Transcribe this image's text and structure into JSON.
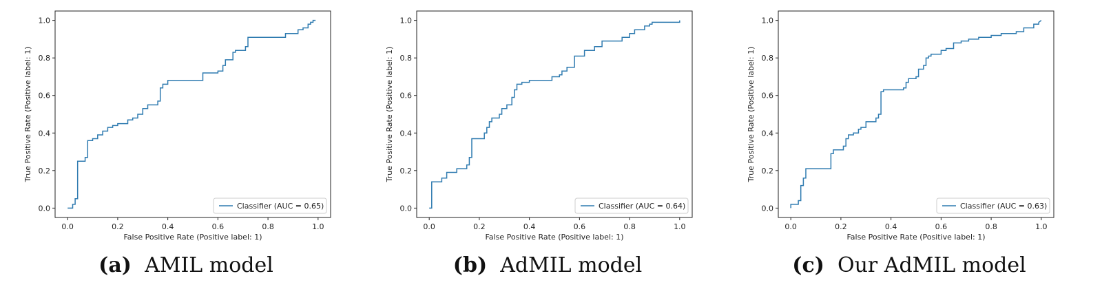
{
  "chart_data": [
    {
      "type": "line",
      "xlabel": "False Positive Rate (Positive label: 1)",
      "ylabel": "True Positive Rate (Positive label: 1)",
      "xlim": [
        0,
        1
      ],
      "ylim": [
        0,
        1
      ],
      "xticks": [
        "0.0",
        "0.2",
        "0.4",
        "0.6",
        "0.8",
        "1.0"
      ],
      "yticks": [
        "0.0",
        "0.2",
        "0.4",
        "0.6",
        "0.8",
        "1.0"
      ],
      "legend": "Classifier (AUC = 0.65)",
      "legend_position": "lower-right",
      "color": "#2f7bb0",
      "caption_tag": "(a)",
      "caption_text": "AMIL model",
      "x": [
        0.0,
        0.02,
        0.02,
        0.03,
        0.03,
        0.04,
        0.04,
        0.07,
        0.07,
        0.08,
        0.08,
        0.1,
        0.1,
        0.12,
        0.12,
        0.14,
        0.14,
        0.16,
        0.16,
        0.18,
        0.18,
        0.2,
        0.2,
        0.24,
        0.24,
        0.26,
        0.26,
        0.28,
        0.28,
        0.3,
        0.3,
        0.32,
        0.32,
        0.36,
        0.36,
        0.37,
        0.37,
        0.38,
        0.38,
        0.4,
        0.4,
        0.54,
        0.54,
        0.6,
        0.6,
        0.62,
        0.62,
        0.63,
        0.63,
        0.66,
        0.66,
        0.67,
        0.67,
        0.71,
        0.71,
        0.72,
        0.72,
        0.87,
        0.87,
        0.92,
        0.92,
        0.94,
        0.94,
        0.96,
        0.96,
        0.97,
        0.97,
        0.98,
        0.98,
        0.99
      ],
      "y": [
        0.0,
        0.0,
        0.02,
        0.02,
        0.05,
        0.05,
        0.25,
        0.25,
        0.27,
        0.27,
        0.36,
        0.36,
        0.37,
        0.37,
        0.39,
        0.39,
        0.41,
        0.41,
        0.43,
        0.43,
        0.44,
        0.44,
        0.45,
        0.45,
        0.47,
        0.47,
        0.48,
        0.48,
        0.5,
        0.5,
        0.53,
        0.53,
        0.55,
        0.55,
        0.57,
        0.57,
        0.64,
        0.64,
        0.66,
        0.66,
        0.68,
        0.68,
        0.72,
        0.72,
        0.73,
        0.73,
        0.76,
        0.76,
        0.79,
        0.79,
        0.83,
        0.83,
        0.84,
        0.84,
        0.86,
        0.86,
        0.91,
        0.91,
        0.93,
        0.93,
        0.95,
        0.95,
        0.96,
        0.96,
        0.98,
        0.98,
        0.99,
        0.99,
        1.0,
        1.0
      ]
    },
    {
      "type": "line",
      "xlabel": "False Positive Rate (Positive label: 1)",
      "ylabel": "True Positive Rate (Positive label: 1)",
      "xlim": [
        0,
        1
      ],
      "ylim": [
        0,
        1
      ],
      "xticks": [
        "0.0",
        "0.2",
        "0.4",
        "0.6",
        "0.8",
        "1.0"
      ],
      "yticks": [
        "0.0",
        "0.2",
        "0.4",
        "0.6",
        "0.8",
        "1.0"
      ],
      "legend": "Classifier (AUC = 0.64)",
      "legend_position": "lower-right",
      "color": "#2f7bb0",
      "caption_tag": "(b)",
      "caption_text": "AdMIL model",
      "x": [
        0.0,
        0.01,
        0.01,
        0.05,
        0.05,
        0.07,
        0.07,
        0.11,
        0.11,
        0.15,
        0.15,
        0.16,
        0.16,
        0.17,
        0.17,
        0.22,
        0.22,
        0.23,
        0.23,
        0.24,
        0.24,
        0.25,
        0.25,
        0.28,
        0.28,
        0.29,
        0.29,
        0.31,
        0.31,
        0.33,
        0.33,
        0.34,
        0.34,
        0.35,
        0.35,
        0.37,
        0.37,
        0.4,
        0.4,
        0.49,
        0.49,
        0.52,
        0.52,
        0.53,
        0.53,
        0.55,
        0.55,
        0.58,
        0.58,
        0.62,
        0.62,
        0.66,
        0.66,
        0.69,
        0.69,
        0.77,
        0.77,
        0.8,
        0.8,
        0.82,
        0.82,
        0.86,
        0.86,
        0.88,
        0.88,
        0.89,
        0.89,
        1.0,
        1.0
      ],
      "y": [
        0.0,
        0.0,
        0.14,
        0.14,
        0.16,
        0.16,
        0.19,
        0.19,
        0.21,
        0.21,
        0.23,
        0.23,
        0.27,
        0.27,
        0.37,
        0.37,
        0.4,
        0.4,
        0.43,
        0.43,
        0.46,
        0.46,
        0.48,
        0.48,
        0.5,
        0.5,
        0.53,
        0.53,
        0.55,
        0.55,
        0.59,
        0.59,
        0.63,
        0.63,
        0.66,
        0.66,
        0.67,
        0.67,
        0.68,
        0.68,
        0.7,
        0.7,
        0.71,
        0.71,
        0.73,
        0.73,
        0.75,
        0.75,
        0.81,
        0.81,
        0.84,
        0.84,
        0.86,
        0.86,
        0.89,
        0.89,
        0.91,
        0.91,
        0.93,
        0.93,
        0.95,
        0.95,
        0.97,
        0.97,
        0.98,
        0.98,
        0.99,
        0.99,
        1.0
      ]
    },
    {
      "type": "line",
      "xlabel": "False Positive Rate (Positive label: 1)",
      "ylabel": "True Positive Rate (Positive label: 1)",
      "xlim": [
        0,
        1
      ],
      "ylim": [
        0,
        1
      ],
      "xticks": [
        "0.0",
        "0.2",
        "0.4",
        "0.6",
        "0.8",
        "1.0"
      ],
      "yticks": [
        "0.0",
        "0.2",
        "0.4",
        "0.6",
        "0.8",
        "1.0"
      ],
      "legend": "Classifier (AUC = 0.63)",
      "legend_position": "lower-right",
      "color": "#2f7bb0",
      "caption_tag": "(c)",
      "caption_text": "Our AdMIL model",
      "x": [
        0.0,
        0.0,
        0.03,
        0.03,
        0.04,
        0.04,
        0.05,
        0.05,
        0.06,
        0.06,
        0.16,
        0.16,
        0.17,
        0.17,
        0.21,
        0.21,
        0.22,
        0.22,
        0.23,
        0.23,
        0.25,
        0.25,
        0.27,
        0.27,
        0.28,
        0.28,
        0.3,
        0.3,
        0.34,
        0.34,
        0.35,
        0.35,
        0.36,
        0.36,
        0.37,
        0.37,
        0.45,
        0.45,
        0.46,
        0.46,
        0.47,
        0.47,
        0.5,
        0.5,
        0.51,
        0.51,
        0.53,
        0.53,
        0.54,
        0.54,
        0.55,
        0.55,
        0.56,
        0.56,
        0.6,
        0.6,
        0.62,
        0.62,
        0.65,
        0.65,
        0.68,
        0.68,
        0.71,
        0.71,
        0.75,
        0.75,
        0.8,
        0.8,
        0.84,
        0.84,
        0.9,
        0.9,
        0.93,
        0.93,
        0.97,
        0.97,
        0.99,
        0.99,
        1.0
      ],
      "y": [
        0.0,
        0.02,
        0.02,
        0.04,
        0.04,
        0.12,
        0.12,
        0.16,
        0.16,
        0.21,
        0.21,
        0.29,
        0.29,
        0.31,
        0.31,
        0.33,
        0.33,
        0.37,
        0.37,
        0.39,
        0.39,
        0.4,
        0.4,
        0.42,
        0.42,
        0.43,
        0.43,
        0.46,
        0.46,
        0.48,
        0.48,
        0.5,
        0.5,
        0.62,
        0.62,
        0.63,
        0.63,
        0.64,
        0.64,
        0.67,
        0.67,
        0.69,
        0.69,
        0.7,
        0.7,
        0.74,
        0.74,
        0.76,
        0.76,
        0.8,
        0.8,
        0.81,
        0.81,
        0.82,
        0.82,
        0.84,
        0.84,
        0.85,
        0.85,
        0.88,
        0.88,
        0.89,
        0.89,
        0.9,
        0.9,
        0.91,
        0.91,
        0.92,
        0.92,
        0.93,
        0.93,
        0.94,
        0.94,
        0.96,
        0.96,
        0.98,
        0.98,
        0.99,
        1.0
      ]
    }
  ]
}
